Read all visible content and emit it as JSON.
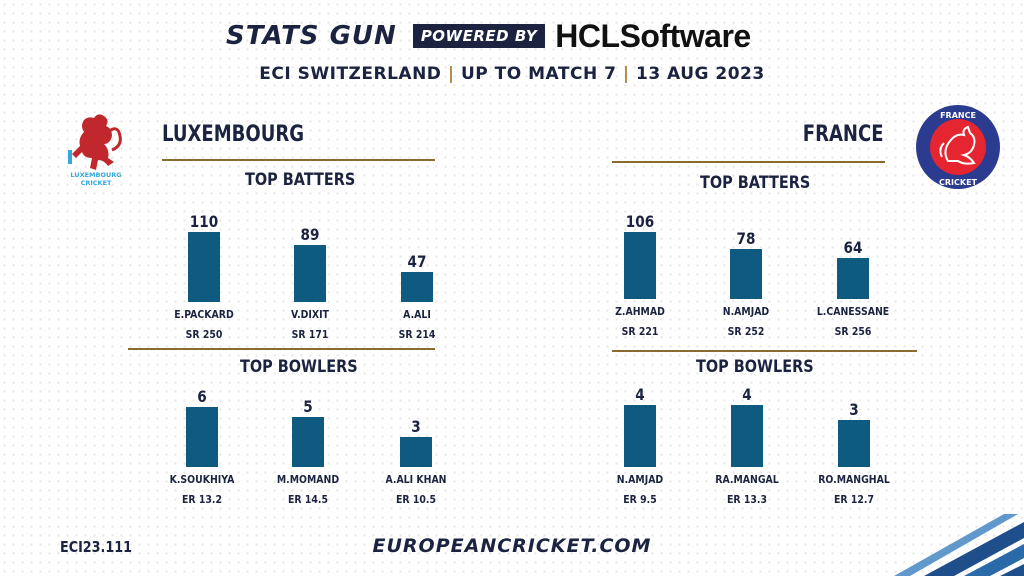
{
  "header": {
    "brand": "STATS GUN",
    "powered_by": "POWERED BY",
    "sponsor": "HCLSoftware",
    "subtitle_part1": "ECI SWITZERLAND",
    "subtitle_part2": "UP TO MATCH 7",
    "subtitle_part3": "13 AUG 2023",
    "separator": "|"
  },
  "teams": {
    "left": {
      "name": "LUXEMBOURG",
      "logo_text_1": "LUXEMBOURG",
      "logo_text_2": "CRICKET"
    },
    "right": {
      "name": "FRANCE",
      "logo_text_1": "FRANCE",
      "logo_text_2": "CRICKET"
    }
  },
  "sections": {
    "batters_title": "TOP BATTERS",
    "bowlers_title": "TOP BOWLERS"
  },
  "chart_data": [
    {
      "type": "bar",
      "team": "LUXEMBOURG",
      "title": "TOP BATTERS",
      "categories": [
        "E.PACKARD",
        "V.DIXIT",
        "A.ALI"
      ],
      "values": [
        110,
        89,
        47
      ],
      "secondary_labels": [
        "SR 250",
        "SR 171",
        "SR 214"
      ],
      "ylim": [
        0,
        110
      ]
    },
    {
      "type": "bar",
      "team": "FRANCE",
      "title": "TOP BATTERS",
      "categories": [
        "Z.AHMAD",
        "N.AMJAD",
        "L.CANESSANE"
      ],
      "values": [
        106,
        78,
        64
      ],
      "secondary_labels": [
        "SR 221",
        "SR 252",
        "SR 256"
      ],
      "ylim": [
        0,
        110
      ]
    },
    {
      "type": "bar",
      "team": "LUXEMBOURG",
      "title": "TOP BOWLERS",
      "categories": [
        "K.SOUKHIYA",
        "M.MOMAND",
        "A.ALI KHAN"
      ],
      "values": [
        6,
        5,
        3
      ],
      "secondary_labels": [
        "ER 13.2",
        "ER 14.5",
        "ER 10.5"
      ],
      "ylim": [
        0,
        6
      ]
    },
    {
      "type": "bar",
      "team": "FRANCE",
      "title": "TOP BOWLERS",
      "categories": [
        "N.AMJAD",
        "RA.MANGAL",
        "RO.MANGHAL"
      ],
      "values": [
        4,
        4,
        3
      ],
      "secondary_labels": [
        "ER 9.5",
        "ER 13.3",
        "ER 12.7"
      ],
      "ylim": [
        0,
        4
      ]
    }
  ],
  "footer": {
    "code": "ECI23.111",
    "website": "EUROPEANCRICKET.COM"
  },
  "colors": {
    "bar": "#0f5a80",
    "navy": "#1b2340",
    "gold": "#8a6a2e",
    "lux_red": "#c0282d",
    "lux_blue": "#35a7d9",
    "france_blue": "#2b3b8f",
    "france_red": "#e5252f"
  }
}
